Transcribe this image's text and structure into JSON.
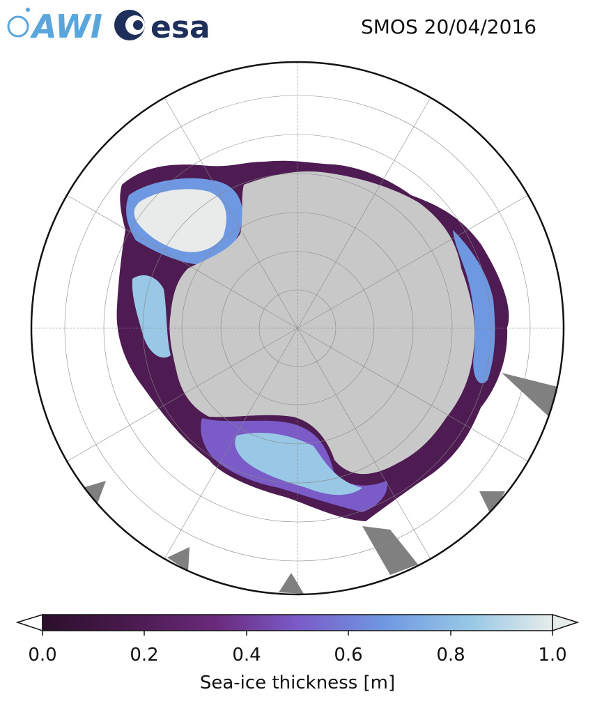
{
  "header": {
    "title": "SMOS 20/04/2016",
    "logos": [
      {
        "text": "AWI",
        "color": "#5aa6dc"
      },
      {
        "text": "esa",
        "color": "#1f2f5c"
      }
    ]
  },
  "map": {
    "projection": "south-polar-stereographic",
    "land_color": "#c8c8c8",
    "no_data_color": "#808080",
    "ocean_color": "#ffffff",
    "graticule_color": "#888888"
  },
  "colorbar": {
    "label": "Sea-ice thickness [m]",
    "min": 0.0,
    "max": 1.0,
    "extend": "both",
    "ticks": [
      "0.0",
      "0.2",
      "0.4",
      "0.6",
      "0.8",
      "1.0"
    ],
    "colors": [
      "#2b0f2b",
      "#4a1a4e",
      "#6a2a7c",
      "#7a5bc8",
      "#6f98e2",
      "#98c8e6",
      "#e6ecea"
    ]
  }
}
